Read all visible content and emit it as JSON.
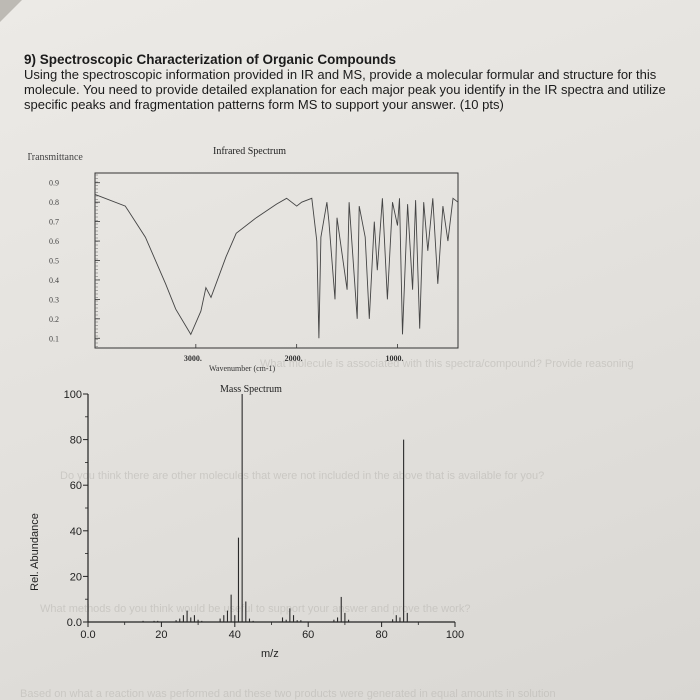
{
  "question": {
    "title": "9)  Spectroscopic Characterization of Organic Compounds",
    "body": [
      "Using the spectroscopic information provided in IR and MS, provide a molecular formular and structure for this",
      "molecule. You need to provide detailed explanation for each major peak you identify in the IR spectra and utilize",
      "specific peaks and fragmentation patterns form MS to support your answer. (10 pts)"
    ]
  },
  "bleed_through": [
    "What molecule is associated with this spectra/compound? Provide reasoning",
    "Do you think there are other molecules that were not included in the above that is available for you?",
    "What methods do you think would be useful to support your answer and prove the work?",
    "Based on what a reaction was performed and these two products were generated in equal amounts in solution"
  ],
  "chart_data": [
    {
      "type": "line",
      "title": "Infrared Spectrum",
      "ylabel": "Transmittance",
      "xlabel": "Wavenumber (cm-1)",
      "y_ticks": [
        "0.9",
        "0.8",
        "0.7",
        "0.6",
        "0.5",
        "0.4",
        "0.3",
        "0.2",
        "0.1"
      ],
      "x_ticks": [
        "3000.",
        "2000.",
        "1000."
      ],
      "xlim": [
        4000,
        400
      ],
      "ylim": [
        0.05,
        0.95
      ],
      "x": [
        4000,
        3700,
        3500,
        3300,
        3200,
        3050,
        2950,
        2900,
        2850,
        2700,
        2600,
        2400,
        2200,
        2100,
        2000,
        1950,
        1850,
        1800,
        1780,
        1760,
        1700,
        1680,
        1620,
        1600,
        1500,
        1480,
        1400,
        1380,
        1320,
        1280,
        1230,
        1200,
        1150,
        1100,
        1050,
        1000,
        980,
        950,
        900,
        850,
        820,
        780,
        740,
        700,
        650,
        600,
        550,
        500,
        450,
        400
      ],
      "y": [
        0.84,
        0.78,
        0.62,
        0.38,
        0.25,
        0.12,
        0.24,
        0.36,
        0.31,
        0.52,
        0.64,
        0.72,
        0.79,
        0.82,
        0.78,
        0.8,
        0.82,
        0.6,
        0.1,
        0.62,
        0.8,
        0.7,
        0.3,
        0.72,
        0.35,
        0.8,
        0.2,
        0.78,
        0.62,
        0.2,
        0.7,
        0.45,
        0.82,
        0.3,
        0.8,
        0.68,
        0.82,
        0.12,
        0.79,
        0.35,
        0.81,
        0.15,
        0.8,
        0.55,
        0.82,
        0.38,
        0.78,
        0.6,
        0.82,
        0.8
      ]
    },
    {
      "type": "bar",
      "title": "Mass Spectrum",
      "xlabel": "m/z",
      "ylabel": "Rel. Abundance",
      "xlim": [
        0,
        100
      ],
      "ylim": [
        0,
        100
      ],
      "x_ticks": [
        "0.0",
        "20",
        "40",
        "60",
        "80",
        "100"
      ],
      "y_ticks": [
        "0.0",
        "20",
        "40",
        "60",
        "80",
        "100"
      ],
      "x": [
        15,
        18,
        19,
        24,
        25,
        26,
        27,
        28,
        29,
        30,
        31,
        36,
        37,
        38,
        39,
        40,
        41,
        42,
        43,
        44,
        45,
        53,
        54,
        55,
        56,
        57,
        58,
        67,
        68,
        69,
        70,
        71,
        83,
        84,
        85,
        86,
        87
      ],
      "y": [
        0.5,
        0.5,
        0.5,
        0.8,
        1.5,
        3,
        5,
        2,
        3,
        1,
        0.5,
        1.5,
        3,
        5,
        12,
        3,
        37,
        100,
        9,
        1.5,
        0.5,
        2,
        1,
        6,
        3,
        0.8,
        0.8,
        1,
        2,
        11,
        4,
        1,
        1.2,
        3,
        2,
        80,
        4
      ]
    }
  ]
}
